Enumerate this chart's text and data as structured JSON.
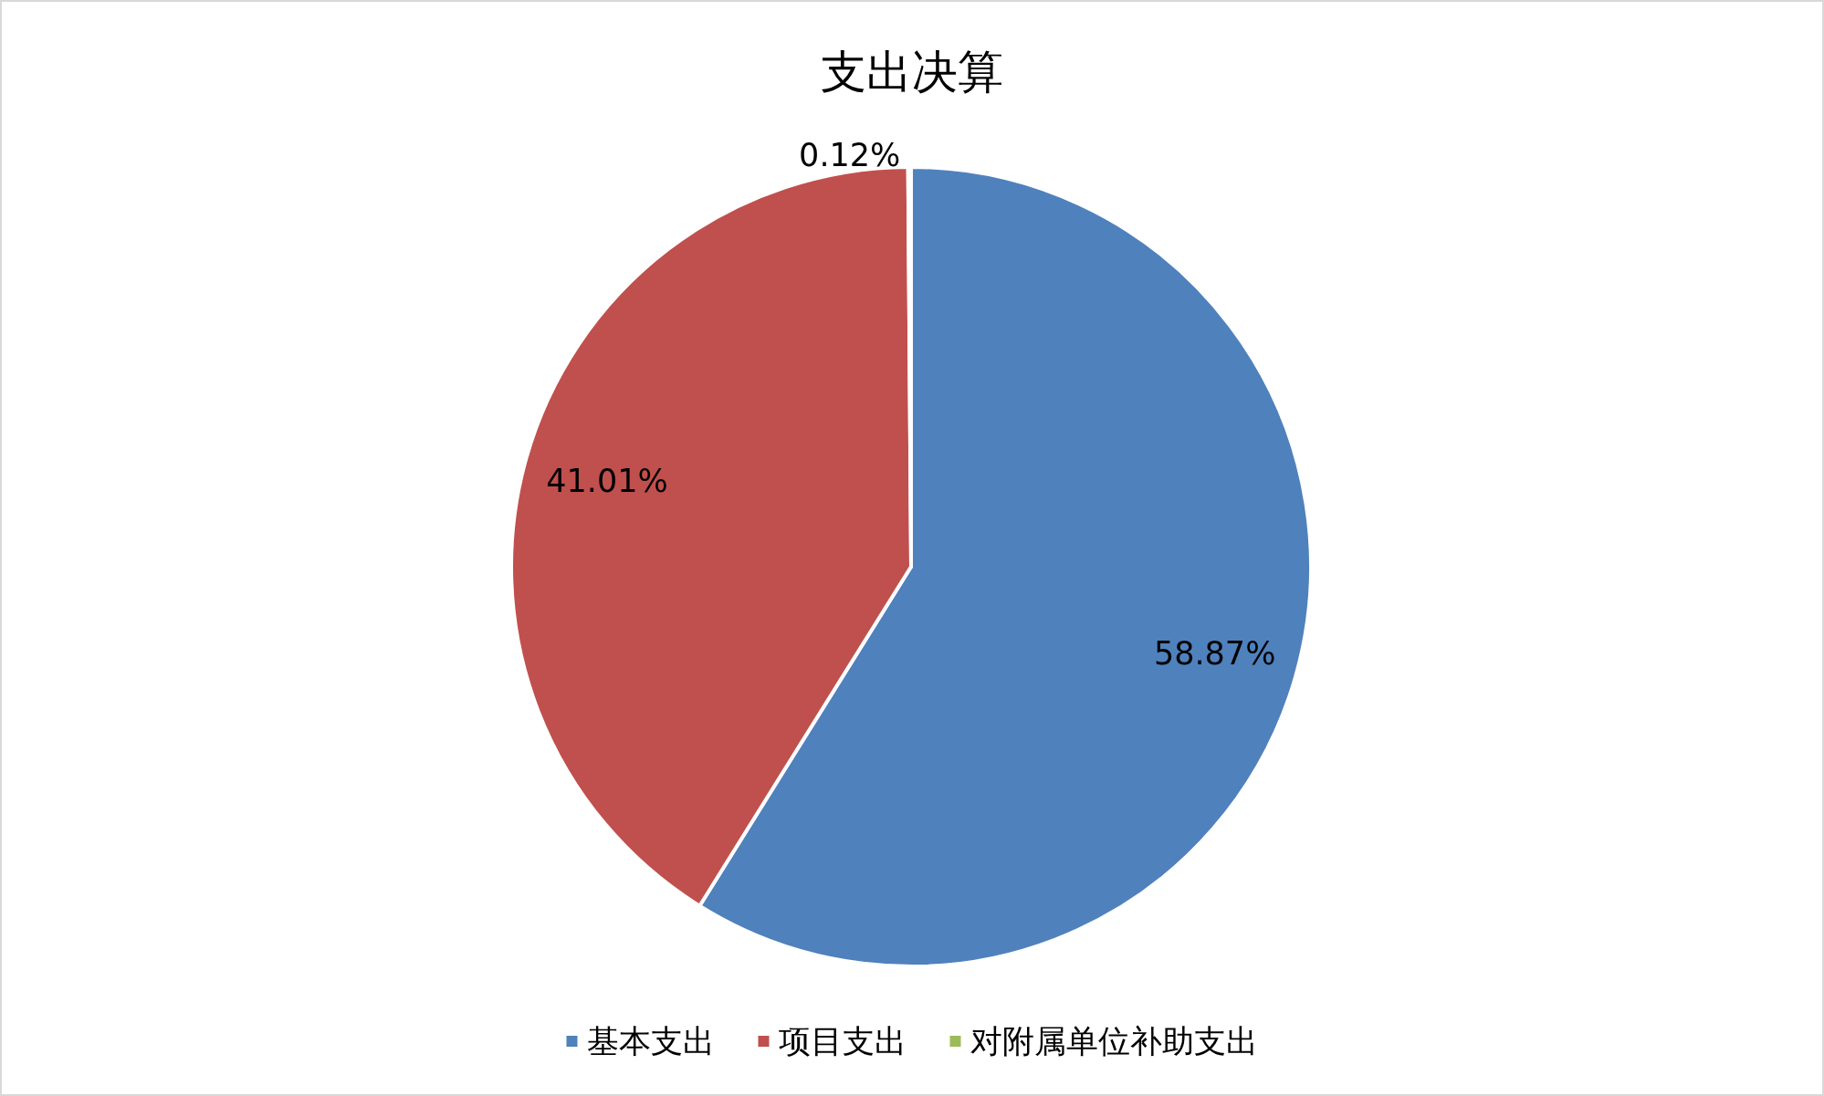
{
  "chart_data": {
    "type": "pie",
    "title": "支出决算",
    "categories": [
      "基本支出",
      "项目支出",
      "对附属单位补助支出"
    ],
    "values": [
      58.87,
      41.01,
      0.12
    ],
    "colors": [
      "#4f81bd",
      "#c0504d",
      "#9bbb59"
    ],
    "value_labels": [
      "58.87%",
      "41.01%",
      "0.12%"
    ],
    "legend": "bottom"
  }
}
